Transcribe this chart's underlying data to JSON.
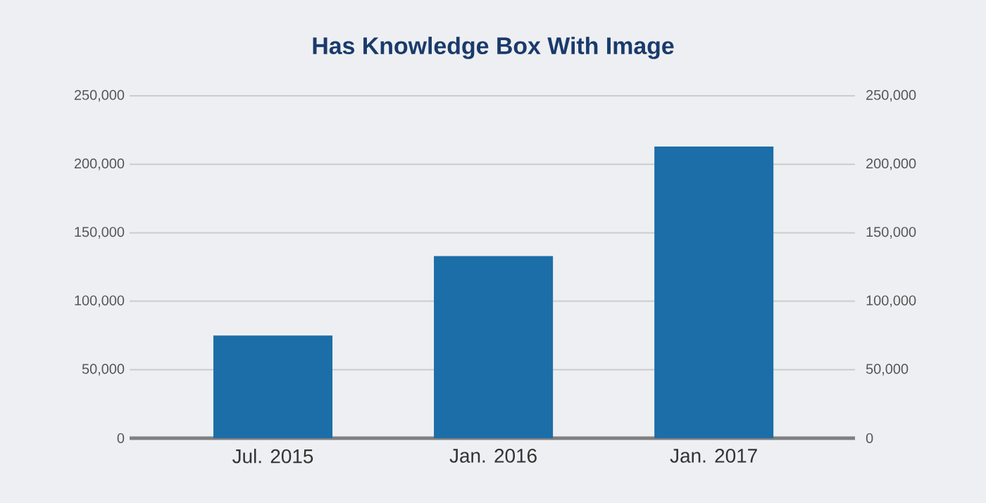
{
  "chart_data": {
    "type": "bar",
    "title": "Has Knowledge Box With Image",
    "categories": [
      "Jul. 2015",
      "Jan. 2016",
      "Jan. 2017"
    ],
    "values": [
      75000,
      133000,
      213000
    ],
    "color": "#1c6ea8",
    "ylim": [
      0,
      250000
    ],
    "yticks": [
      {
        "value": 0,
        "label": "0"
      },
      {
        "value": 50000,
        "label": "50,000"
      },
      {
        "value": 100000,
        "label": "100,000"
      },
      {
        "value": 150000,
        "label": "150,000"
      },
      {
        "value": 200000,
        "label": "200,000"
      },
      {
        "value": 250000,
        "label": "250,000"
      }
    ],
    "y2lim": [
      0,
      250000
    ],
    "y2ticks": [
      {
        "value": 0,
        "label": "0"
      },
      {
        "value": 50000,
        "label": "50,000"
      },
      {
        "value": 100000,
        "label": "100,000"
      },
      {
        "value": 150000,
        "label": "150,000"
      },
      {
        "value": 200000,
        "label": "200,000"
      },
      {
        "value": 250000,
        "label": "250,000"
      }
    ],
    "grid": "y"
  }
}
